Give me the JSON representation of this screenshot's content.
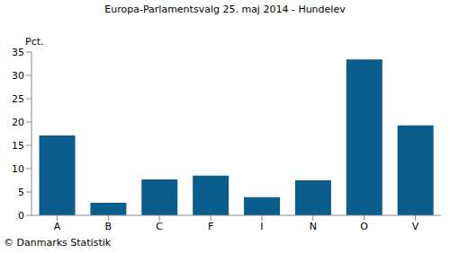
{
  "chart_data": {
    "type": "bar",
    "title": "Europa-Parlamentsvalg 25. maj 2014 - Hundelev",
    "y_label": "Pct.",
    "annotation": "© Danmarks Statistik",
    "categories": [
      "A",
      "B",
      "C",
      "F",
      "I",
      "N",
      "O",
      "V"
    ],
    "values": [
      17.1,
      2.7,
      7.7,
      8.5,
      3.9,
      7.5,
      33.4,
      19.3
    ],
    "color": "#0b5e8c",
    "ylim": [
      0,
      35
    ],
    "yticks": [
      0,
      5,
      10,
      15,
      20,
      25,
      30,
      35
    ],
    "grid": false
  }
}
